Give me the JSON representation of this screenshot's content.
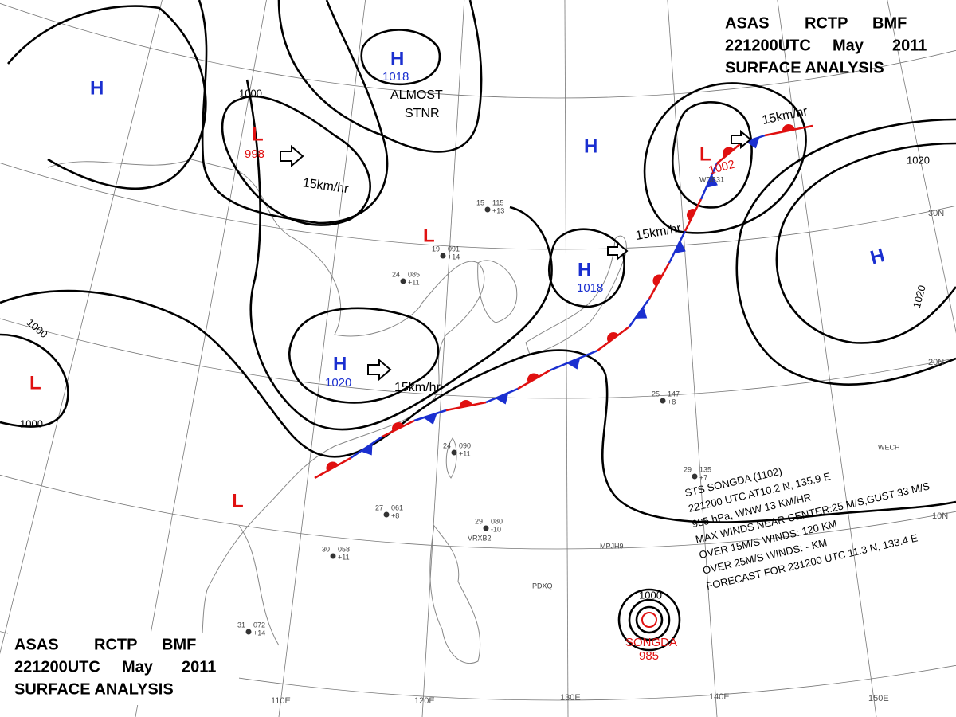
{
  "header": {
    "station": "ASAS",
    "center": "RCTP",
    "office": "BMF",
    "time": "221200UTC",
    "month": "May",
    "year": "2011",
    "product": "SURFACE  ANALYSIS"
  },
  "systems": [
    {
      "symbol": "H"
    },
    {
      "symbol": "L",
      "pressure": "998"
    },
    {
      "symbol": "H",
      "pressure": "1018"
    },
    {
      "symbol": "H"
    },
    {
      "symbol": "L",
      "pressure": "1002"
    },
    {
      "symbol": "H",
      "pressure": "1018"
    },
    {
      "symbol": "H"
    },
    {
      "symbol": "H",
      "pressure": "1020"
    },
    {
      "symbol": "L"
    },
    {
      "symbol": "L"
    },
    {
      "symbol": "L"
    }
  ],
  "isobar_labels": [
    "1000",
    "1020",
    "1020",
    "1000",
    "1000",
    "1000"
  ],
  "movements": [
    "15km/hr",
    "15km/hr",
    "15km/hr",
    "15km/hr"
  ],
  "remark": [
    "ALMOST",
    "STNR"
  ],
  "latitudes": [
    "30N",
    "20N",
    "10N"
  ],
  "longitudes": [
    "110E",
    "120E",
    "130E",
    "140E",
    "150E"
  ],
  "typhoon": {
    "name": "SONGDA",
    "pressure": "985",
    "bulletin": [
      "STS  SONGDA  (1102)",
      "221200 UTC  AT10.2 N, 135.9 E",
      "985 hPa, WNW  13 KM/HR",
      "MAX WINDS NEAR CENTER:25 M/S,GUST 33 M/S",
      "OVER 15M/S WINDS: 120 KM",
      "OVER 25M/S WINDS: - KM",
      "FORECAST FOR 231200 UTC 11.3 N, 133.4 E"
    ]
  },
  "stations": [
    {
      "temp": "15",
      "pressure": "115",
      "tendency": "+13"
    },
    {
      "temp": "24",
      "pressure": "085",
      "tendency": "+11"
    },
    {
      "temp": "19",
      "pressure": "091",
      "tendency": "+14"
    },
    {
      "temp": "24",
      "pressure": "090",
      "tendency": "+11"
    },
    {
      "temp": "25",
      "pressure": "147",
      "tendency": "+8"
    },
    {
      "temp": "29",
      "pressure": "135",
      "tendency": "+7"
    },
    {
      "temp": "29",
      "pressure": "080",
      "tendency": "-10"
    },
    {
      "temp": "27",
      "pressure": "061",
      "tendency": "+8"
    },
    {
      "temp": "30",
      "pressure": "058",
      "tendency": "+11"
    },
    {
      "temp": "31",
      "pressure": "072",
      "tendency": "+14"
    }
  ],
  "ship_calls": [
    "WDB31",
    "VRXB2",
    "PDXQ",
    "MPJH9",
    "WECH"
  ]
}
